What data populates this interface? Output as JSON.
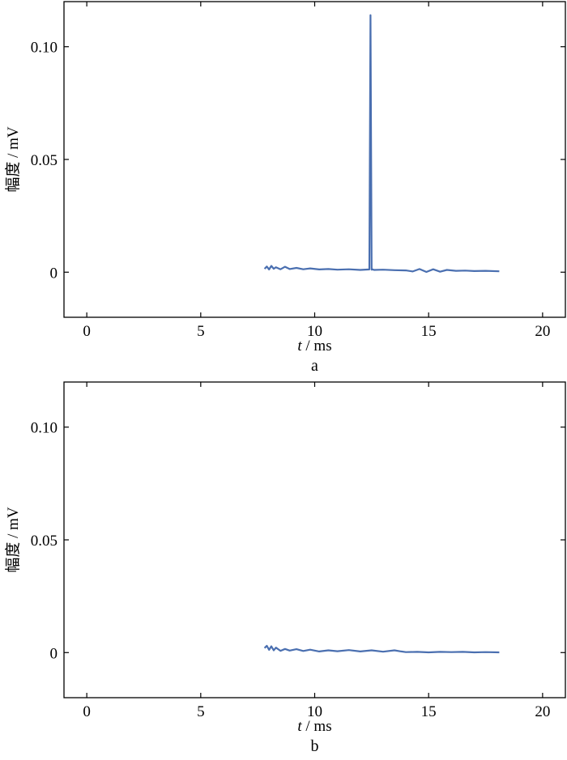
{
  "chart_data": [
    {
      "type": "line",
      "panel_label": "a",
      "xlabel_var": "t",
      "xlabel_unit": " / ms",
      "ylabel": "幅度 / mV",
      "xlim": [
        -1,
        21
      ],
      "ylim": [
        -0.02,
        0.12
      ],
      "xticks": [
        0,
        5,
        10,
        15,
        20
      ],
      "xtick_labels": [
        "0",
        "5",
        "10",
        "15",
        "20"
      ],
      "yticks": [
        0,
        0.05,
        0.1
      ],
      "ytick_labels": [
        "0",
        "0.05",
        "0.10"
      ],
      "grid": false,
      "line_color": "#4a6fb0",
      "series": [
        {
          "x": [
            7.8,
            7.9,
            8.0,
            8.1,
            8.2,
            8.3,
            8.5,
            8.7,
            8.9,
            9.2,
            9.5,
            9.8,
            10.2,
            10.6,
            11.0,
            11.5,
            12.0,
            12.4,
            12.45,
            12.5,
            12.55,
            12.6,
            13.0,
            13.5,
            14.0,
            14.3,
            14.6,
            14.9,
            15.2,
            15.5,
            15.8,
            16.2,
            16.6,
            17.0,
            17.5,
            18.1
          ],
          "y": [
            0.0015,
            0.0025,
            0.0012,
            0.0028,
            0.0015,
            0.0022,
            0.0013,
            0.0024,
            0.0014,
            0.0019,
            0.0013,
            0.0017,
            0.0012,
            0.0014,
            0.0011,
            0.0013,
            0.001,
            0.0012,
            0.114,
            0.0011,
            0.0012,
            0.001,
            0.0011,
            0.0009,
            0.0008,
            0.0003,
            0.0014,
            0.0001,
            0.0013,
            0.0002,
            0.001,
            0.0006,
            0.0007,
            0.0005,
            0.0006,
            0.0004
          ]
        }
      ]
    },
    {
      "type": "line",
      "panel_label": "b",
      "xlabel_var": "t",
      "xlabel_unit": " / ms",
      "ylabel": "幅度 / mV",
      "xlim": [
        -1,
        21
      ],
      "ylim": [
        -0.02,
        0.12
      ],
      "xticks": [
        0,
        5,
        10,
        15,
        20
      ],
      "xtick_labels": [
        "0",
        "5",
        "10",
        "15",
        "20"
      ],
      "yticks": [
        0,
        0.05,
        0.1
      ],
      "ytick_labels": [
        "0",
        "0.05",
        "0.10"
      ],
      "grid": false,
      "line_color": "#4a6fb0",
      "series": [
        {
          "x": [
            7.8,
            7.9,
            8.0,
            8.1,
            8.2,
            8.3,
            8.5,
            8.7,
            8.9,
            9.2,
            9.5,
            9.8,
            10.2,
            10.6,
            11.0,
            11.5,
            12.0,
            12.5,
            13.0,
            13.5,
            13.8,
            14.0,
            14.5,
            15.0,
            15.5,
            16.0,
            16.5,
            17.0,
            17.5,
            18.1
          ],
          "y": [
            0.002,
            0.003,
            0.0012,
            0.0028,
            0.001,
            0.0022,
            0.0008,
            0.0016,
            0.0009,
            0.0015,
            0.0007,
            0.0013,
            0.0005,
            0.001,
            0.0006,
            0.0011,
            0.0005,
            0.001,
            0.0004,
            0.001,
            0.0005,
            0.0002,
            0.0003,
            0.0001,
            0.0003,
            0.0002,
            0.0003,
            0.0001,
            0.0002,
            0.0001
          ]
        }
      ]
    }
  ]
}
